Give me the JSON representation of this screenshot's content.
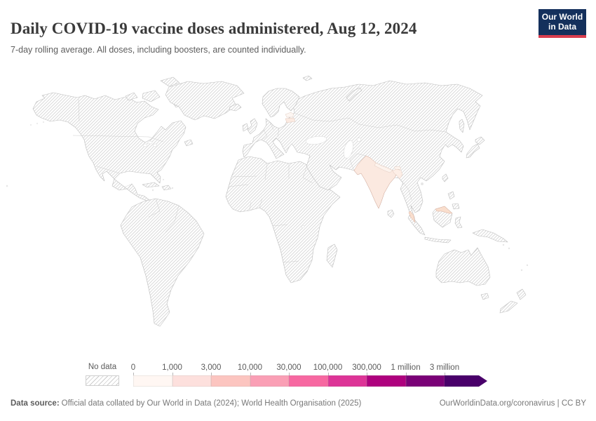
{
  "header": {
    "title": "Daily COVID-19 vaccine doses administered, Aug 12, 2024",
    "subtitle": "7-day rolling average. All doses, including boosters, are counted individually.",
    "logo_line1": "Our World",
    "logo_line2": "in Data",
    "logo_bg": "#14305c",
    "logo_accent": "#d93d4e"
  },
  "legend": {
    "no_data_label": "No data",
    "tick_labels": [
      "0",
      "1,000",
      "3,000",
      "10,000",
      "30,000",
      "100,000",
      "300,000",
      "1 million",
      "3 million"
    ],
    "colors": [
      "#fff7f3",
      "#fde0dd",
      "#fcc5c0",
      "#fa9fb5",
      "#f768a1",
      "#dd3497",
      "#ae017e",
      "#7a0177",
      "#49006a"
    ]
  },
  "map_colors": {
    "india": "#fbe9e0",
    "malaysia_peninsula": "#f9decd",
    "malaysia_borneo": "#f9decd",
    "latvia": "#fbeae1",
    "estonia": "#fdf6f2",
    "bangladesh": "#fdeee6",
    "nepal": "#fdf3ed",
    "bhutan": "#fdf4ee"
  },
  "footer": {
    "source_label": "Data source:",
    "source_text": "Official data collated by Our World in Data (2024); World Health Organisation (2025)",
    "link_text": "OurWorldinData.org/coronavirus",
    "separator": "|",
    "license_text": "CC BY"
  },
  "chart_data": {
    "type": "heatmap",
    "subtype": "choropleth-world-map",
    "title": "Daily COVID-19 vaccine doses administered, Aug 12, 2024",
    "subtitle": "7-day rolling average. All doses, including boosters, are counted individually.",
    "legend_position": "bottom",
    "scale": "log-binned",
    "legend_bins": [
      "0",
      "1,000",
      "3,000",
      "10,000",
      "30,000",
      "100,000",
      "300,000",
      "1 million",
      "3 million"
    ],
    "bin_colors": [
      "#fff7f3",
      "#fde0dd",
      "#fcc5c0",
      "#fa9fb5",
      "#f768a1",
      "#dd3497",
      "#ae017e",
      "#7a0177",
      "#49006a"
    ],
    "no_data_style": "diagonal-hatch-pattern",
    "visibly_shaded_regions": [
      {
        "region": "India",
        "shade": "very light pink",
        "approx_bin": "low (under 3,000)"
      },
      {
        "region": "Malaysia (peninsula and north Borneo)",
        "shade": "very light pink",
        "approx_bin": "low (under 3,000)"
      },
      {
        "region": "Latvia",
        "shade": "very light pink",
        "approx_bin": "low (under 3,000)"
      },
      {
        "region": "Estonia",
        "shade": "near-white pink",
        "approx_bin": "low (under 1,000)"
      },
      {
        "region": "Bangladesh / Bhutan / Nepal area",
        "shade": "near-white pink",
        "approx_bin": "low (under 1,000)"
      }
    ],
    "all_other_regions": "No data (hatched)"
  }
}
